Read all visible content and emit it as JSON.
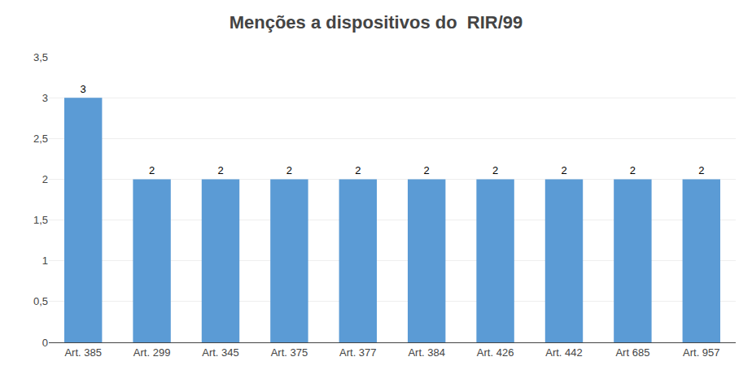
{
  "chart_data": {
    "type": "bar",
    "title": "Menções a dispositivos do  RIR/99",
    "categories": [
      "Art. 385",
      "Art. 299",
      "Art. 345",
      "Art. 375",
      "Art. 377",
      "Art. 384",
      "Art. 426",
      "Art. 442",
      "Art 685",
      "Art. 957"
    ],
    "values": [
      3,
      2,
      2,
      2,
      2,
      2,
      2,
      2,
      2,
      2
    ],
    "color": "#5B9BD5",
    "ylim": [
      0,
      3.5
    ],
    "yticks": [
      0,
      {
        "value": 0.5,
        "label": "0,5"
      },
      1,
      {
        "value": 1.5,
        "label": "1,5"
      },
      2,
      {
        "value": 2.5,
        "label": "2,5"
      },
      3,
      {
        "value": 3.5,
        "label": "3,5"
      }
    ],
    "grid": true,
    "data_labels": true
  }
}
